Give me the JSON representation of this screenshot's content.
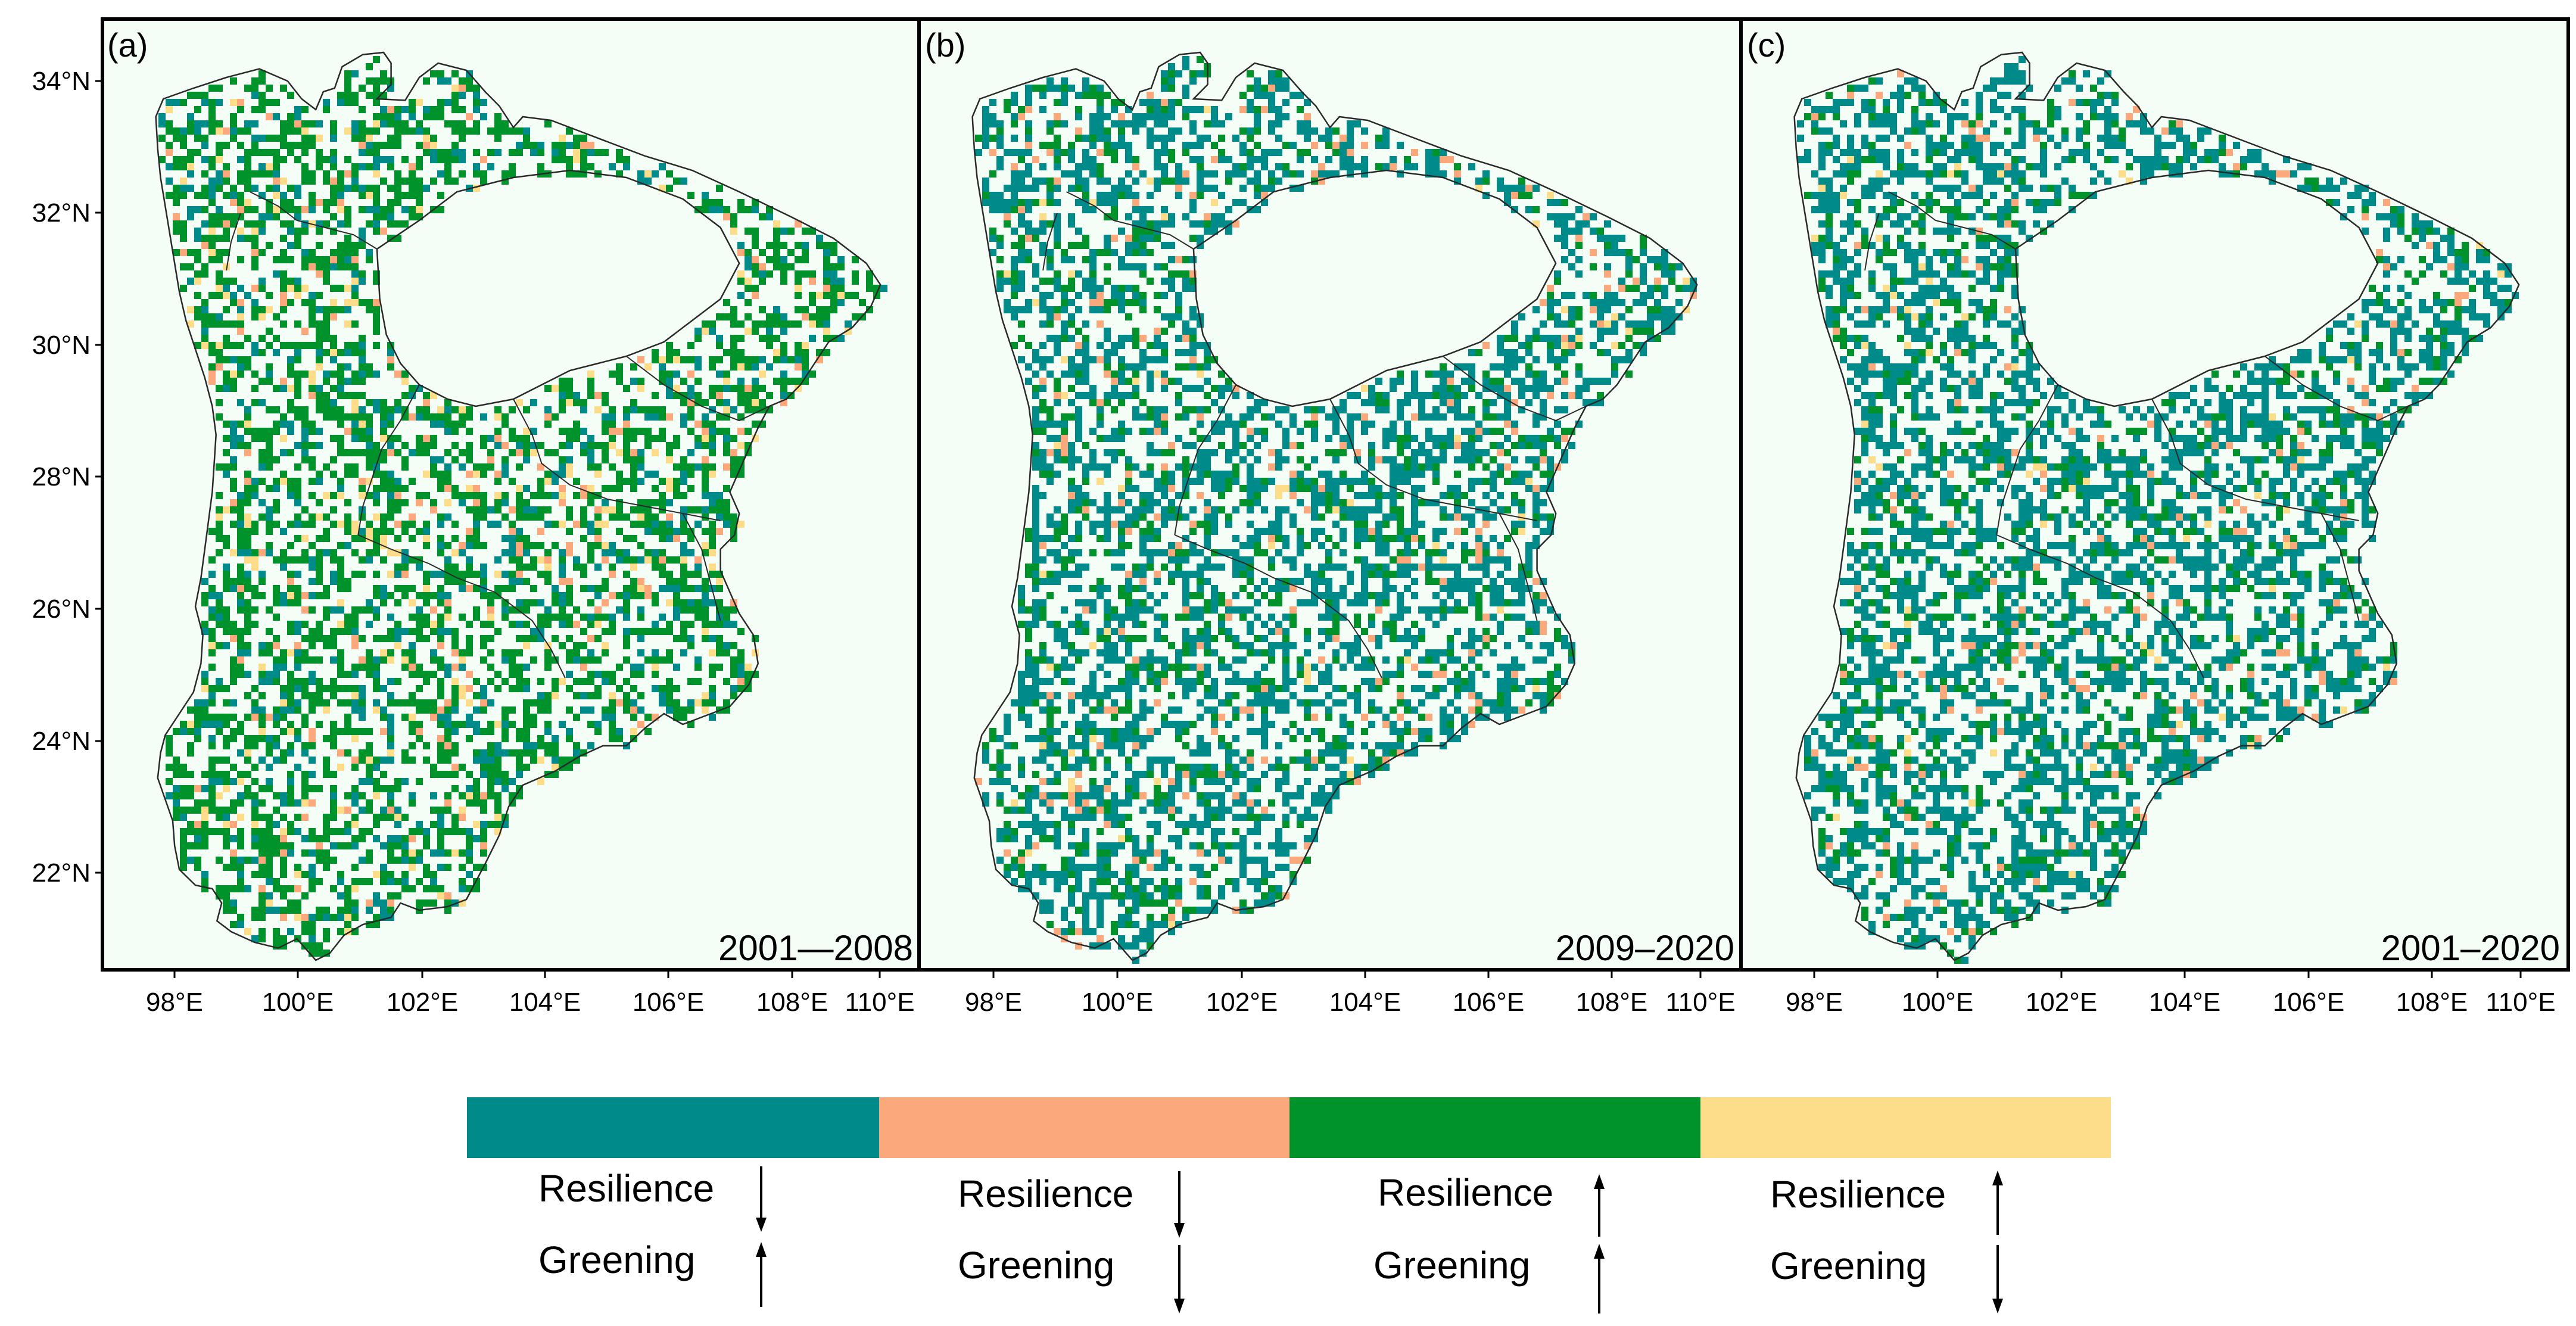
{
  "panels": [
    {
      "label": "(a)",
      "period": "2001—2008",
      "weights": [
        0.22,
        0.05,
        0.66,
        0.07
      ]
    },
    {
      "label": "(b)",
      "period": "2009–2020",
      "weights": [
        0.66,
        0.07,
        0.25,
        0.02
      ]
    },
    {
      "label": "(c)",
      "period": "2001–2020",
      "weights": [
        0.7,
        0.05,
        0.23,
        0.02
      ]
    }
  ],
  "lat_ticks": [
    "22°N",
    "24°N",
    "26°N",
    "28°N",
    "30°N",
    "32°N",
    "34°N"
  ],
  "lon_ticks": [
    "98°E",
    "100°E",
    "102°E",
    "104°E",
    "106°E",
    "108°E",
    "110°E"
  ],
  "legend": [
    {
      "color": "#008b8b",
      "line1": "Resilience",
      "arrow1": "down",
      "line2": "Greening",
      "arrow2": "up"
    },
    {
      "color": "#fba87c",
      "line1": "Resilience",
      "arrow1": "down",
      "line2": "Greening",
      "arrow2": "down"
    },
    {
      "color": "#00932c",
      "line1": "Resilience",
      "arrow1": "up",
      "line2": "Greening",
      "arrow2": "up"
    },
    {
      "color": "#fedd8a",
      "line1": "Resilience",
      "arrow1": "up",
      "line2": "Greening",
      "arrow2": "down"
    }
  ],
  "colors": {
    "panel_background": "#f4fdf6",
    "frame": "#000000",
    "boundary": "#2a2a2a"
  }
}
